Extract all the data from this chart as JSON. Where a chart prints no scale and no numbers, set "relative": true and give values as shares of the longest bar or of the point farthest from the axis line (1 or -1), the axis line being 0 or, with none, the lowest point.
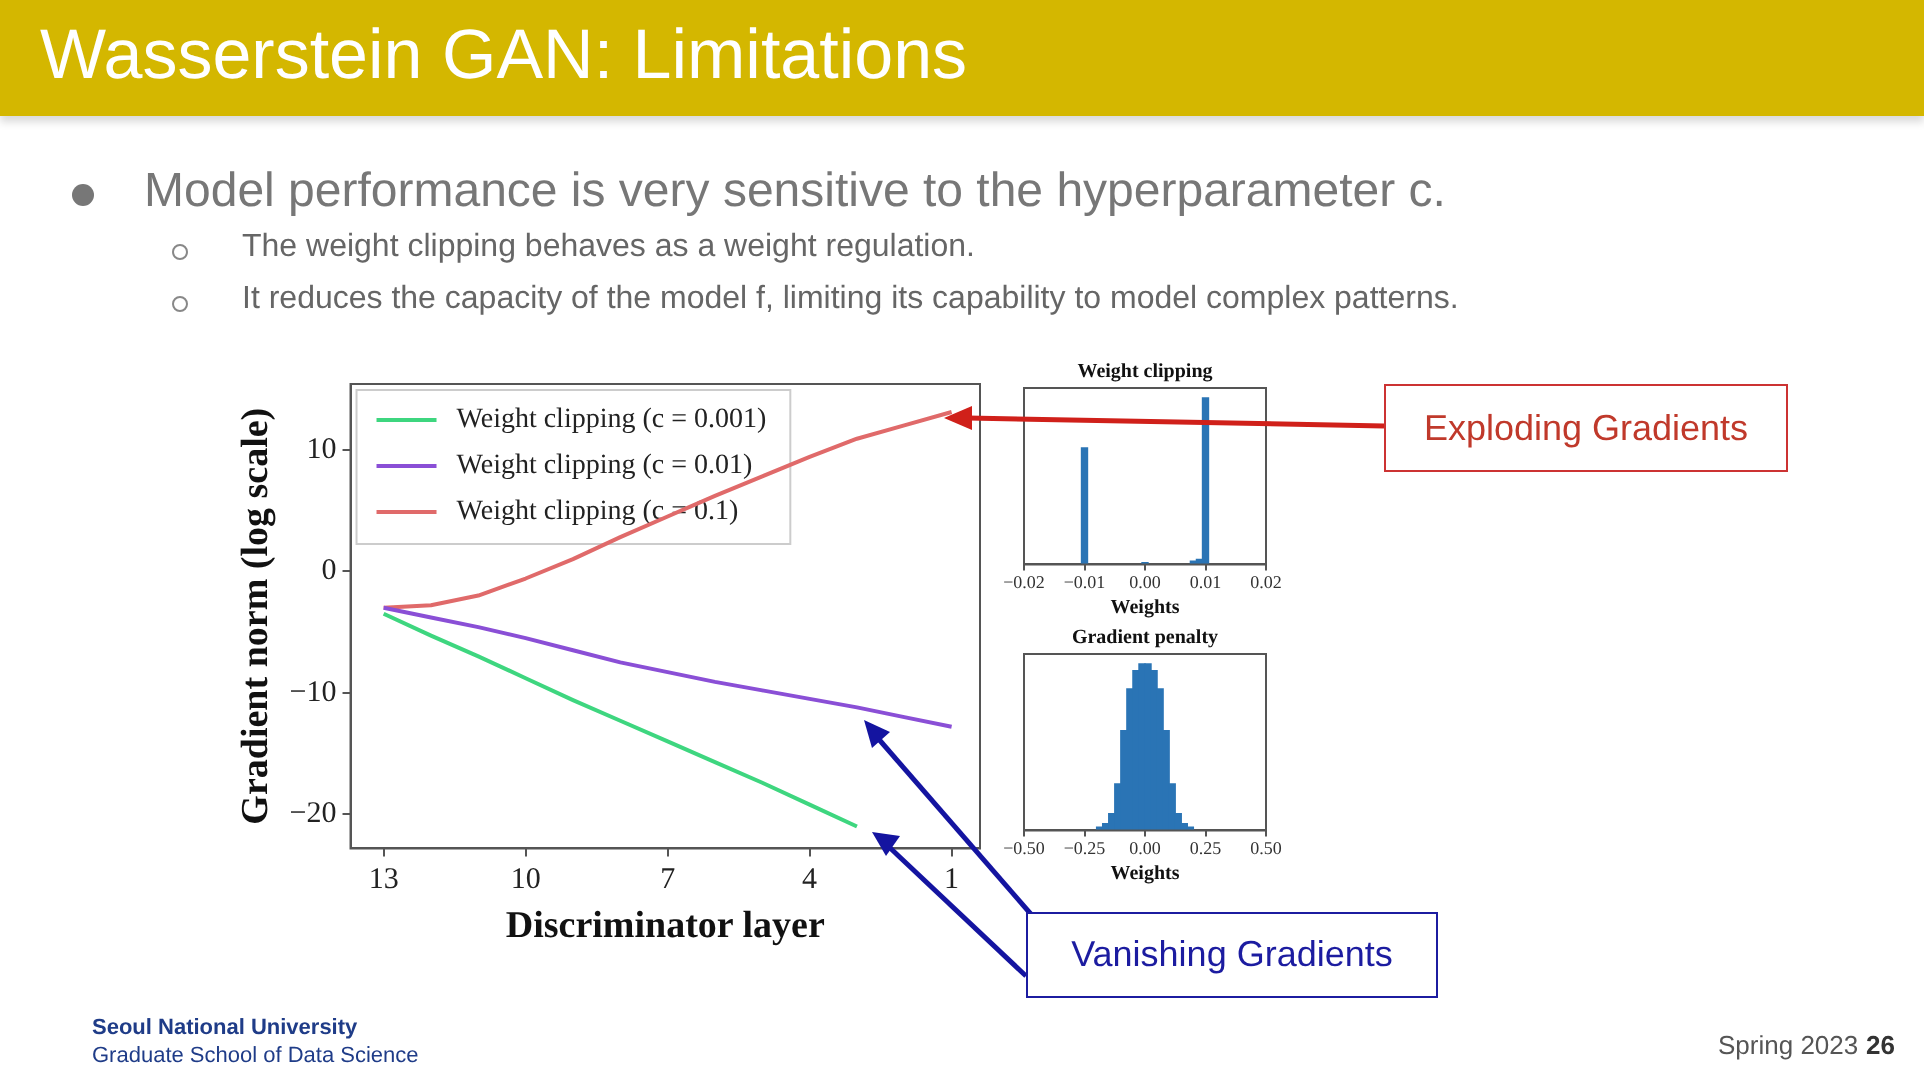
{
  "chart_data": [
    {
      "type": "line",
      "title": "Wasserstein GAN: Limitations",
      "xlabel": "Discriminator layer",
      "ylabel": "Gradient norm (log scale)",
      "x": [
        13,
        12,
        11,
        10,
        9,
        8,
        7,
        6,
        5,
        4,
        3,
        2,
        1
      ],
      "series": [
        {
          "name": "Weight clipping (c = 0.001)",
          "color": "#3ed67f",
          "values": [
            -3.5,
            -5.3,
            -7.0,
            -8.8,
            -10.6,
            -12.3,
            -14.0,
            -15.7,
            -17.4,
            -19.2,
            -21,
            null,
            null
          ]
        },
        {
          "name": "Weight clipping (c = 0.01)",
          "color": "#8a4fd6",
          "values": [
            -3,
            -3.8,
            -4.6,
            -5.5,
            -6.5,
            -7.5,
            -8.3,
            -9.1,
            -9.8,
            -10.5,
            -11.2,
            -12.0,
            -12.8
          ]
        },
        {
          "name": "Weight clipping (c = 0.1)",
          "color": "#e06a6a",
          "values": [
            -3,
            -2.8,
            -2.0,
            -0.6,
            1.0,
            2.8,
            4.5,
            6.2,
            7.8,
            9.4,
            10.9,
            12.0,
            13.1
          ]
        }
      ],
      "xlim": [
        13.7,
        0.4
      ],
      "xticks": [
        13,
        10,
        7,
        4,
        1
      ],
      "ylim": [
        -22.8,
        15.4
      ],
      "yticks": [
        {
          "value": -20,
          "label": "−20"
        },
        {
          "value": -10,
          "label": "−10"
        },
        0,
        10
      ],
      "grid": false,
      "legend": "top left",
      "marker": "none",
      "line_style": "solid",
      "annotations": [
        "Model performance is very sensitive to the hyperparameter c.",
        "The weight clipping behaves as a weight regulation.",
        "It reduces the capacity of the model f, limiting its capability to model complex patterns.",
        "Exploding Gradients",
        "Vanishing Gradients",
        "Seoul National University",
        "Graduate School of Data Science",
        "Spring 2023",
        "26"
      ]
    },
    {
      "type": "bar",
      "title": "Weight clipping",
      "xlabel": "Weights",
      "relative": true,
      "color": "#2a74b5",
      "x": [
        -0.01,
        0,
        0.008,
        0.009,
        0.01
      ],
      "values": [
        0.7,
        0.01,
        0.02,
        0.03,
        1
      ],
      "xlim": [
        -0.02,
        0.02
      ],
      "xticks": [
        {
          "value": -0.02,
          "label": "−0.02"
        },
        {
          "value": -0.01,
          "label": "−0.01"
        },
        {
          "value": 0,
          "label": "0.00"
        },
        {
          "value": 0.01,
          "label": "0.01"
        },
        {
          "value": 0.02,
          "label": "0.02"
        }
      ]
    },
    {
      "type": "bar",
      "title": "Gradient penalty",
      "xlabel": "Weights",
      "relative": true,
      "color": "#2a74b5",
      "x": [
        -0.1875,
        -0.1625,
        -0.1375,
        -0.1125,
        -0.0875,
        -0.0625,
        -0.0375,
        -0.0125,
        0.0125,
        0.0375,
        0.0625,
        0.0875,
        0.1125,
        0.1375,
        0.1625,
        0.1875
      ],
      "values": [
        0.02,
        0.04,
        0.1,
        0.28,
        0.6,
        0.85,
        0.96,
        1,
        1,
        0.96,
        0.85,
        0.6,
        0.28,
        0.1,
        0.04,
        0.02
      ],
      "xlim": [
        -0.5,
        0.5
      ],
      "xticks": [
        {
          "value": -0.5,
          "label": "−0.50"
        },
        {
          "value": -0.25,
          "label": "−0.25"
        },
        {
          "value": 0,
          "label": "0.00"
        },
        {
          "value": 0.25,
          "label": "0.25"
        },
        {
          "value": 0.5,
          "label": "0.50"
        }
      ]
    }
  ]
}
